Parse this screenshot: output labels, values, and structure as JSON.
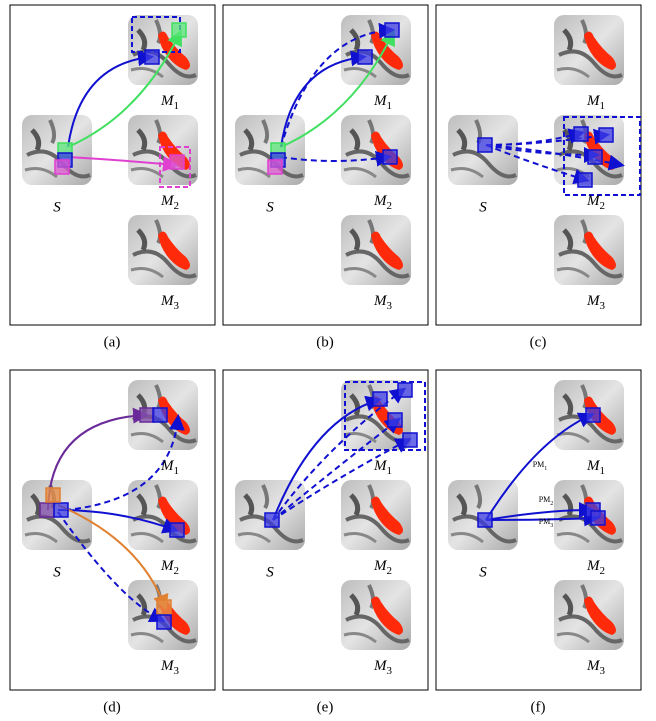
{
  "panels": [
    {
      "caption": "(a)",
      "s": "S",
      "m1": {
        "base": "M",
        "sub": "1"
      },
      "m2": {
        "base": "M",
        "sub": "2"
      },
      "m3": {
        "base": "M",
        "sub": "3"
      }
    },
    {
      "caption": "(b)",
      "s": "S",
      "m1": {
        "base": "M",
        "sub": "1"
      },
      "m2": {
        "base": "M",
        "sub": "2"
      },
      "m3": {
        "base": "M",
        "sub": "3"
      }
    },
    {
      "caption": "(c)",
      "s": "S",
      "m1": {
        "base": "M",
        "sub": "1"
      },
      "m2": {
        "base": "M",
        "sub": "2"
      },
      "m3": {
        "base": "M",
        "sub": "3"
      }
    },
    {
      "caption": "(d)",
      "s": "S",
      "m1": {
        "base": "M",
        "sub": "1"
      },
      "m2": {
        "base": "M",
        "sub": "2"
      },
      "m3": {
        "base": "M",
        "sub": "3"
      }
    },
    {
      "caption": "(e)",
      "s": "S",
      "m1": {
        "base": "M",
        "sub": "1"
      },
      "m2": {
        "base": "M",
        "sub": "2"
      },
      "m3": {
        "base": "M",
        "sub": "3"
      }
    },
    {
      "caption": "(f)",
      "s": "S",
      "m1": {
        "base": "M",
        "sub": "1"
      },
      "m2": {
        "base": "M",
        "sub": "2"
      },
      "m3": {
        "base": "M",
        "sub": "3"
      },
      "pm": [
        {
          "base": "PM",
          "sub": "1"
        },
        {
          "base": "PM",
          "sub": "2"
        },
        {
          "base": "PM",
          "sub": "3"
        }
      ]
    }
  ]
}
